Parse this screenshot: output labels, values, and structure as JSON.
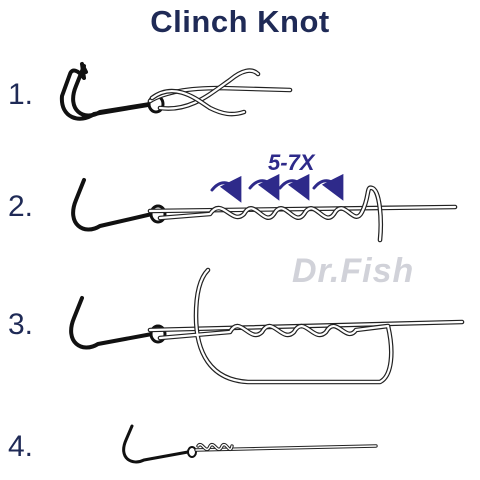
{
  "title": "Clinch Knot",
  "steps": [
    {
      "number": "1."
    },
    {
      "number": "2."
    },
    {
      "number": "3."
    },
    {
      "number": "4."
    }
  ],
  "wraps_label": "5-7X",
  "watermark": "Dr.Fish",
  "colors": {
    "title": "#1f2a56",
    "arrows": "#2e2a8a",
    "line_outline": "#222222",
    "hook": "#111111"
  },
  "icons": [
    "hook-icon",
    "fishing-line",
    "wrap-arrow-icon"
  ]
}
